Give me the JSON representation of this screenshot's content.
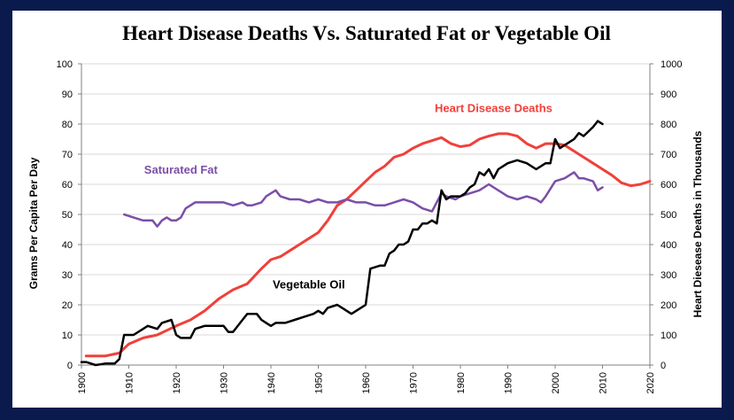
{
  "chart_data": {
    "type": "line",
    "title": "Heart Disease Deaths Vs. Saturated Fat or Vegetable Oil",
    "xlabel": "",
    "ylabel": "Grams Per Capita Per Day",
    "ylabel_right": "Heart Diesease Deaths in Thousands",
    "xlim": [
      1900,
      2020
    ],
    "ylim": [
      0,
      100
    ],
    "ylim_right": [
      0,
      1000
    ],
    "x_ticks": [
      "1900",
      "1910",
      "1920",
      "1930",
      "1940",
      "1950",
      "1960",
      "1970",
      "1980",
      "1990",
      "2000",
      "2010",
      "2020"
    ],
    "y_ticks": [
      "0",
      "10",
      "20",
      "30",
      "40",
      "50",
      "60",
      "70",
      "80",
      "90",
      "100"
    ],
    "y_ticks_right": [
      "0",
      "100",
      "200",
      "300",
      "400",
      "500",
      "600",
      "700",
      "800",
      "900",
      "1000"
    ],
    "grid": true,
    "series": [
      {
        "name": "Heart Disease Deaths",
        "axis": "right",
        "color": "#f0403a",
        "label": "Heart Disease Deaths",
        "points": [
          [
            1901,
            30
          ],
          [
            1905,
            30
          ],
          [
            1908,
            40
          ],
          [
            1910,
            70
          ],
          [
            1913,
            90
          ],
          [
            1916,
            100
          ],
          [
            1920,
            130
          ],
          [
            1923,
            150
          ],
          [
            1926,
            180
          ],
          [
            1929,
            220
          ],
          [
            1932,
            250
          ],
          [
            1935,
            270
          ],
          [
            1938,
            320
          ],
          [
            1940,
            350
          ],
          [
            1942,
            360
          ],
          [
            1944,
            380
          ],
          [
            1946,
            400
          ],
          [
            1948,
            420
          ],
          [
            1950,
            440
          ],
          [
            1952,
            480
          ],
          [
            1954,
            530
          ],
          [
            1956,
            550
          ],
          [
            1958,
            580
          ],
          [
            1960,
            610
          ],
          [
            1962,
            640
          ],
          [
            1964,
            660
          ],
          [
            1966,
            690
          ],
          [
            1968,
            700
          ],
          [
            1970,
            720
          ],
          [
            1972,
            735
          ],
          [
            1974,
            745
          ],
          [
            1976,
            755
          ],
          [
            1978,
            735
          ],
          [
            1980,
            725
          ],
          [
            1982,
            730
          ],
          [
            1984,
            750
          ],
          [
            1986,
            760
          ],
          [
            1988,
            768
          ],
          [
            1990,
            768
          ],
          [
            1992,
            760
          ],
          [
            1994,
            735
          ],
          [
            1996,
            720
          ],
          [
            1998,
            735
          ],
          [
            2000,
            735
          ],
          [
            2002,
            730
          ],
          [
            2004,
            710
          ],
          [
            2006,
            690
          ],
          [
            2008,
            670
          ],
          [
            2010,
            650
          ],
          [
            2012,
            630
          ],
          [
            2014,
            605
          ],
          [
            2016,
            595
          ],
          [
            2018,
            600
          ],
          [
            2020,
            610
          ]
        ]
      },
      {
        "name": "Saturated Fat",
        "axis": "left",
        "color": "#7b4fa8",
        "label": "Saturated Fat",
        "points": [
          [
            1909,
            50
          ],
          [
            1911,
            49
          ],
          [
            1913,
            48
          ],
          [
            1915,
            48
          ],
          [
            1916,
            46
          ],
          [
            1917,
            48
          ],
          [
            1918,
            49
          ],
          [
            1919,
            48
          ],
          [
            1920,
            48
          ],
          [
            1921,
            49
          ],
          [
            1922,
            52
          ],
          [
            1924,
            54
          ],
          [
            1926,
            54
          ],
          [
            1928,
            54
          ],
          [
            1930,
            54
          ],
          [
            1932,
            53
          ],
          [
            1934,
            54
          ],
          [
            1935,
            53
          ],
          [
            1936,
            53
          ],
          [
            1938,
            54
          ],
          [
            1939,
            56
          ],
          [
            1940,
            57
          ],
          [
            1941,
            58
          ],
          [
            1942,
            56
          ],
          [
            1944,
            55
          ],
          [
            1946,
            55
          ],
          [
            1948,
            54
          ],
          [
            1950,
            55
          ],
          [
            1952,
            54
          ],
          [
            1954,
            54
          ],
          [
            1956,
            55
          ],
          [
            1958,
            54
          ],
          [
            1960,
            54
          ],
          [
            1962,
            53
          ],
          [
            1964,
            53
          ],
          [
            1966,
            54
          ],
          [
            1968,
            55
          ],
          [
            1970,
            54
          ],
          [
            1972,
            52
          ],
          [
            1974,
            51
          ],
          [
            1976,
            57
          ],
          [
            1977,
            56
          ],
          [
            1979,
            55
          ],
          [
            1980,
            56
          ],
          [
            1982,
            57
          ],
          [
            1984,
            58
          ],
          [
            1986,
            60
          ],
          [
            1988,
            58
          ],
          [
            1990,
            56
          ],
          [
            1992,
            55
          ],
          [
            1994,
            56
          ],
          [
            1996,
            55
          ],
          [
            1997,
            54
          ],
          [
            1998,
            56
          ],
          [
            2000,
            61
          ],
          [
            2002,
            62
          ],
          [
            2004,
            64
          ],
          [
            2005,
            62
          ],
          [
            2006,
            62
          ],
          [
            2008,
            61
          ],
          [
            2009,
            58
          ],
          [
            2010,
            59
          ]
        ]
      },
      {
        "name": "Vegetable Oil",
        "axis": "left",
        "color": "#000000",
        "label": "Vegetable Oil",
        "points": [
          [
            1900,
            1
          ],
          [
            1901,
            1
          ],
          [
            1903,
            0
          ],
          [
            1905,
            0.5
          ],
          [
            1907,
            0.5
          ],
          [
            1908,
            2
          ],
          [
            1909,
            10
          ],
          [
            1911,
            10
          ],
          [
            1913,
            12
          ],
          [
            1914,
            13
          ],
          [
            1916,
            12
          ],
          [
            1917,
            14
          ],
          [
            1919,
            15
          ],
          [
            1920,
            10
          ],
          [
            1921,
            9
          ],
          [
            1923,
            9
          ],
          [
            1924,
            12
          ],
          [
            1926,
            13
          ],
          [
            1928,
            13
          ],
          [
            1930,
            13
          ],
          [
            1931,
            11
          ],
          [
            1932,
            11
          ],
          [
            1934,
            15
          ],
          [
            1935,
            17
          ],
          [
            1937,
            17
          ],
          [
            1938,
            15
          ],
          [
            1939,
            14
          ],
          [
            1940,
            13
          ],
          [
            1941,
            14
          ],
          [
            1943,
            14
          ],
          [
            1945,
            15
          ],
          [
            1947,
            16
          ],
          [
            1949,
            17
          ],
          [
            1950,
            18
          ],
          [
            1951,
            17
          ],
          [
            1952,
            19
          ],
          [
            1954,
            20
          ],
          [
            1955,
            19
          ],
          [
            1956,
            18
          ],
          [
            1957,
            17
          ],
          [
            1958,
            18
          ],
          [
            1959,
            19
          ],
          [
            1960,
            20
          ],
          [
            1961,
            32
          ],
          [
            1963,
            33
          ],
          [
            1964,
            33
          ],
          [
            1965,
            37
          ],
          [
            1966,
            38
          ],
          [
            1967,
            40
          ],
          [
            1968,
            40
          ],
          [
            1969,
            41
          ],
          [
            1970,
            45
          ],
          [
            1971,
            45
          ],
          [
            1972,
            47
          ],
          [
            1973,
            47
          ],
          [
            1974,
            48
          ],
          [
            1975,
            47
          ],
          [
            1976,
            58
          ],
          [
            1977,
            55
          ],
          [
            1978,
            56
          ],
          [
            1980,
            56
          ],
          [
            1981,
            57
          ],
          [
            1982,
            59
          ],
          [
            1983,
            60
          ],
          [
            1984,
            64
          ],
          [
            1985,
            63
          ],
          [
            1986,
            65
          ],
          [
            1987,
            62
          ],
          [
            1988,
            65
          ],
          [
            1989,
            66
          ],
          [
            1990,
            67
          ],
          [
            1992,
            68
          ],
          [
            1994,
            67
          ],
          [
            1996,
            65
          ],
          [
            1998,
            67
          ],
          [
            1999,
            67
          ],
          [
            2000,
            75
          ],
          [
            2001,
            72
          ],
          [
            2002,
            73
          ],
          [
            2003,
            74
          ],
          [
            2004,
            75
          ],
          [
            2005,
            77
          ],
          [
            2006,
            76
          ],
          [
            2008,
            79
          ],
          [
            2009,
            81
          ],
          [
            2010,
            80
          ]
        ]
      }
    ]
  }
}
